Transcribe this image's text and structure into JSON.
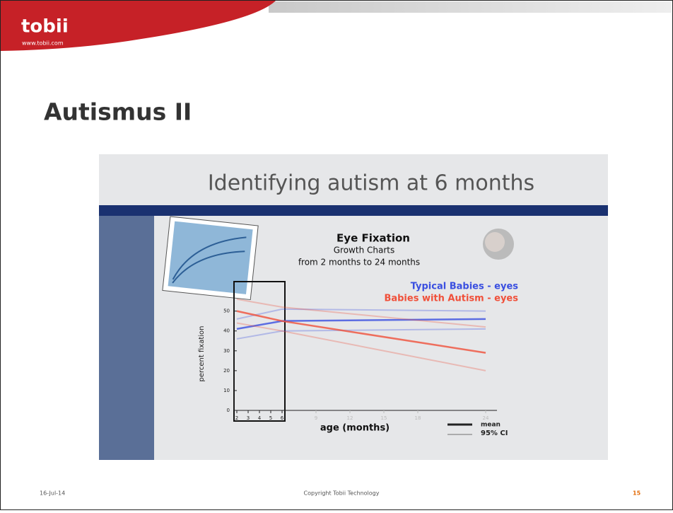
{
  "header": {
    "logo": "tobii",
    "url": "www.tobii.com"
  },
  "slide": {
    "title": "Autismus II"
  },
  "figure": {
    "chart_data": {
      "type": "line",
      "title": "Identifying autism at 6 months",
      "heading": "Eye Fixation",
      "subtitle": [
        "Growth Charts",
        "from 2 months to 24 months"
      ],
      "x_label": "age (months)",
      "y_label": "percent fixation",
      "x": [
        2,
        6,
        24
      ],
      "series": [
        {
          "name": "Typical Babies - eyes",
          "color": "#3a4fe0",
          "values": [
            41,
            45,
            46
          ],
          "ci_low": [
            36,
            40,
            41
          ],
          "ci_high": [
            46,
            51,
            50
          ]
        },
        {
          "name": "Babies with Autism - eyes",
          "color": "#f0503a",
          "values": [
            50,
            45,
            29
          ],
          "ci_low": [
            44,
            40,
            20
          ],
          "ci_high": [
            56,
            52,
            42
          ]
        }
      ],
      "legend_key": [
        "mean",
        "95% CI"
      ],
      "xlim": [
        1.75,
        25
      ],
      "xticks": [
        2,
        3,
        4,
        5,
        6,
        9,
        12,
        15,
        18,
        24
      ],
      "ylim": [
        0,
        57
      ],
      "yticks": [
        0,
        10,
        20,
        30,
        40,
        50
      ]
    }
  },
  "footer": {
    "date": "16-Jul-14",
    "copyright": "Copyright Tobii Technology",
    "page": "15"
  }
}
